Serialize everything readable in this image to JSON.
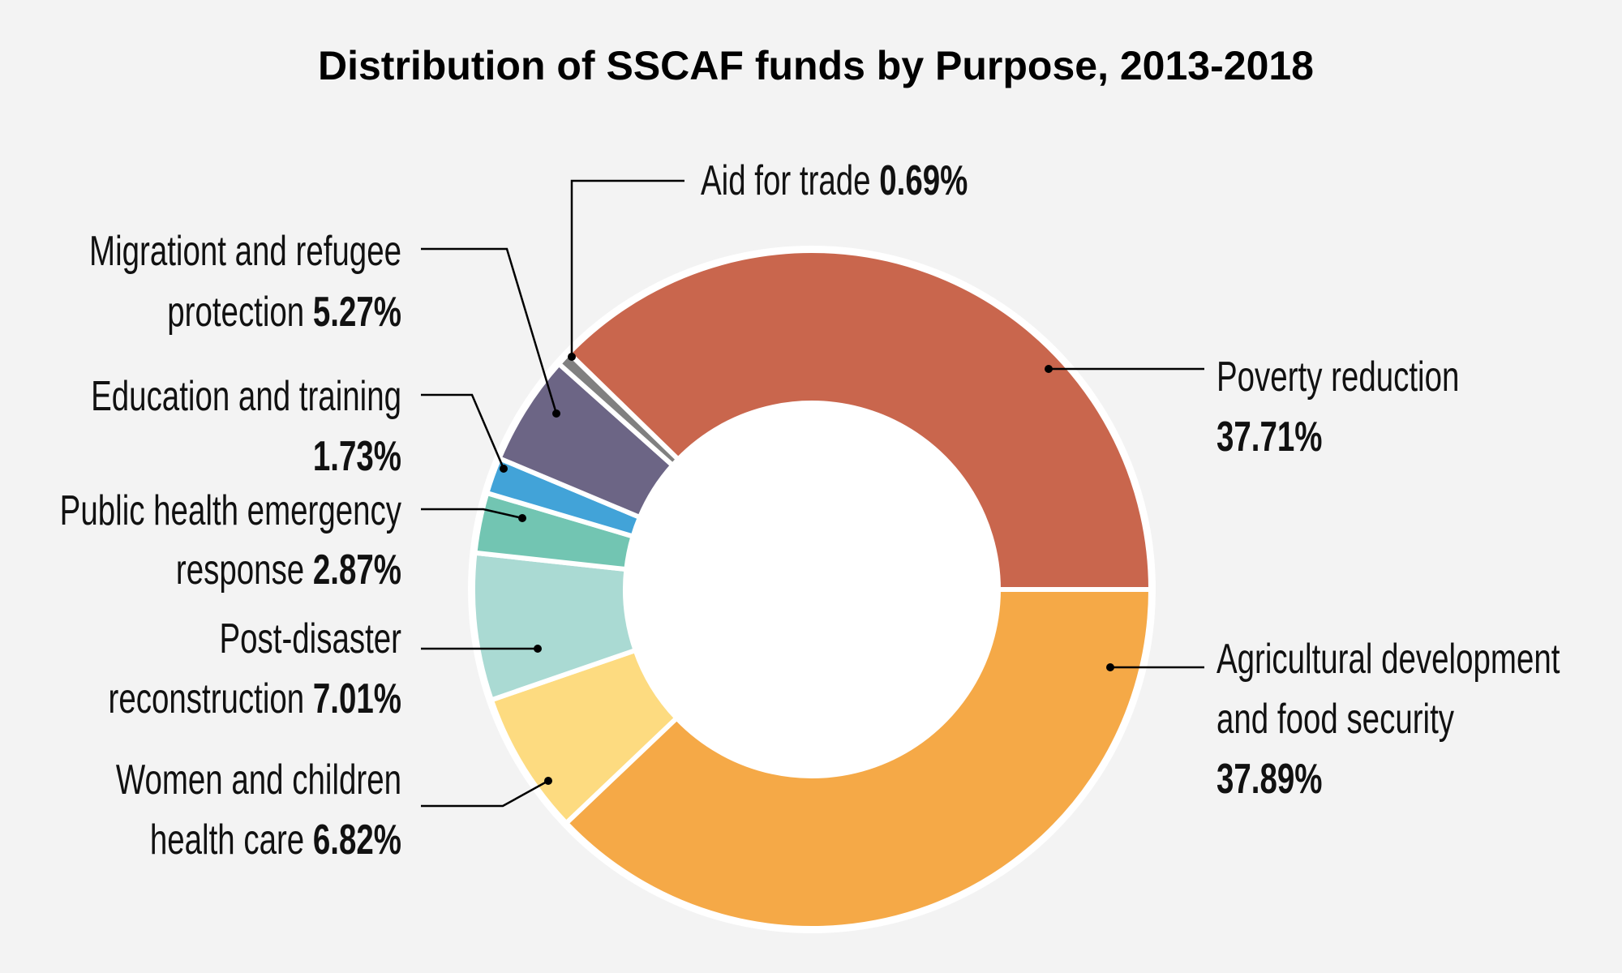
{
  "chart_data": {
    "type": "pie",
    "variant": "donut",
    "title": "Distribution of SSCAF funds by Purpose, 2013-2018",
    "unit": "%",
    "slices": [
      {
        "label": "Poverty reduction",
        "value": 37.71,
        "value_label": "37.71%",
        "color": "#c9664d"
      },
      {
        "label": "Agricultural development and food security",
        "value": 37.89,
        "value_label": "37.89%",
        "color": "#f5a947"
      },
      {
        "label": "Women and children health care",
        "value": 6.82,
        "value_label": "6.82%",
        "color": "#fddb80"
      },
      {
        "label": "Post-disaster reconstruction",
        "value": 7.01,
        "value_label": "7.01%",
        "color": "#aadad3"
      },
      {
        "label": "Public health emergency response",
        "value": 2.87,
        "value_label": "2.87%",
        "color": "#72c5b2"
      },
      {
        "label": "Education and training",
        "value": 1.73,
        "value_label": "1.73%",
        "color": "#42a3d8"
      },
      {
        "label": "Migrationt and refugee protection",
        "value": 5.27,
        "value_label": "5.27%",
        "color": "#6c6585"
      },
      {
        "label": "Aid for trade",
        "value": 0.69,
        "value_label": "0.69%",
        "color": "#808080"
      }
    ],
    "legend": "callout labels around donut",
    "background": "#f3f3f3"
  },
  "labels": {
    "poverty": {
      "line1": "Poverty reduction",
      "value": "37.71%"
    },
    "agri": {
      "line1": "Agricultural development",
      "line2": "and food security",
      "value": "37.89%"
    },
    "women": {
      "line1": "Women and children",
      "line2": "health care ",
      "value": "6.82%"
    },
    "post": {
      "line1": "Post-disaster",
      "line2": "reconstruction ",
      "value": "7.01%"
    },
    "health": {
      "line1": "Public health emergency",
      "line2": "response ",
      "value": "2.87%"
    },
    "edu": {
      "line1": "Education and training",
      "value": "1.73%"
    },
    "migr": {
      "line1": "Migrationt and refugee",
      "line2": "protection ",
      "value": "5.27%"
    },
    "aid": {
      "line1": "Aid for trade ",
      "value": "0.69%"
    }
  }
}
